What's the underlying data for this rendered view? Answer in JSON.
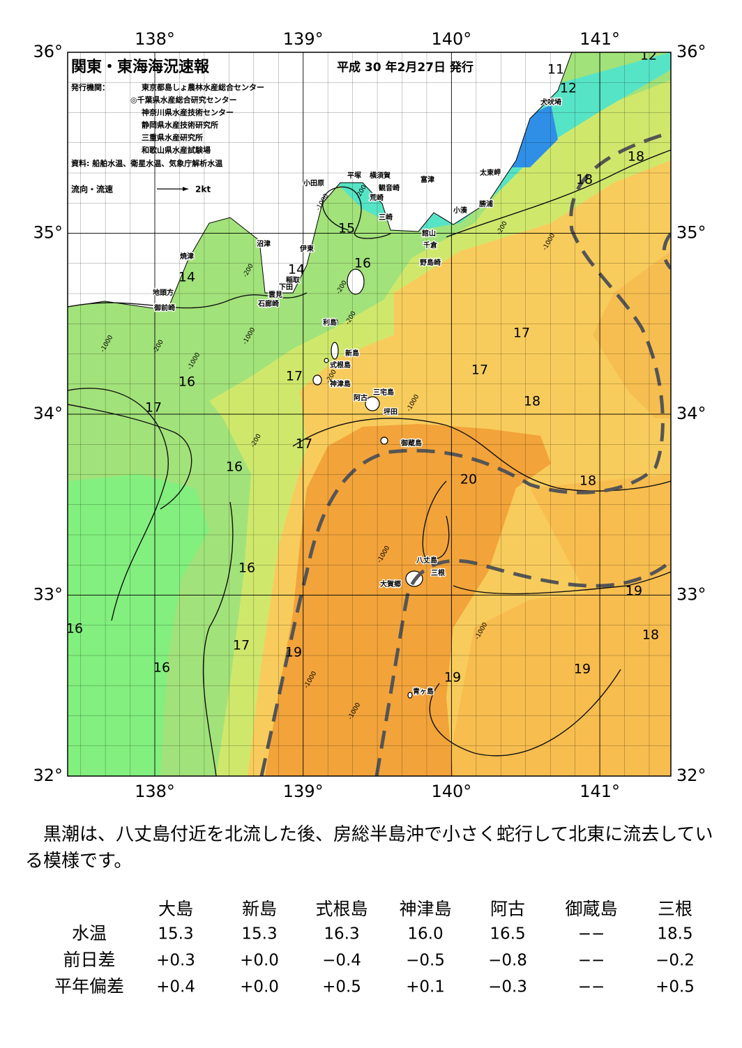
{
  "header": {
    "title": "関東・東海海況速報",
    "date": "平成 30 年2月27日 発行",
    "issuer_label": "発行機関：",
    "issuers": [
      "東京都島しょ農林水産総合センター",
      "◎千葉県水産総合研究センター",
      "神奈川県水産技術センター",
      "静岡県水産技術研究所",
      "三重県水産研究所",
      "和歌山県水産試験場"
    ],
    "source": "資料: 船舶水温、衛星水温、気象庁解析水温",
    "legend_label": "流向・流速",
    "legend_unit": "2kt"
  },
  "axes": {
    "top": [
      "138°",
      "139°",
      "140°",
      "141°"
    ],
    "bottom": [
      "138°",
      "139°",
      "140°",
      "141°"
    ],
    "left": [
      "36°",
      "35°",
      "34°",
      "33°",
      "32°"
    ],
    "right": [
      "36°",
      "35°",
      "34°",
      "33°",
      "32°"
    ]
  },
  "places": [
    "小田原",
    "平塚",
    "横須賀",
    "観音崎",
    "荒崎",
    "三崎",
    "富津",
    "太東岬",
    "勝浦",
    "小湊",
    "館山",
    "千倉",
    "野島崎",
    "犬吠埼",
    "沼津",
    "伊東",
    "焼津",
    "稲取",
    "下田",
    "雲見",
    "石廊崎",
    "地頭方",
    "御前崎",
    "利島",
    "新島",
    "式根島",
    "神津島",
    "三宅島",
    "阿古",
    "坪田",
    "御蔵島",
    "八丈島",
    "三根",
    "大賀郷",
    "青ヶ島"
  ],
  "isotherm_labels": [
    "12",
    "11",
    "12",
    "18",
    "18",
    "15",
    "16",
    "14",
    "14",
    "16",
    "17",
    "17",
    "17",
    "18",
    "17",
    "17",
    "16",
    "20",
    "18",
    "16",
    "19",
    "16",
    "18",
    "17",
    "19",
    "16",
    "19",
    "19"
  ],
  "depth_labels": [
    "-200",
    "-1000",
    "-200",
    "-1000",
    "-200",
    "-200",
    "-200",
    "-1000",
    "-200",
    "-1000",
    "-1000",
    "-200",
    "-1000",
    "-200",
    "-1000",
    "-1000",
    "-1000",
    "-1000"
  ],
  "summary": "　黒潮は、八丈島付近を北流した後、房総半島沖で小さく蛇行して北東に流去している模様です。",
  "table": {
    "columns": [
      "大島",
      "新島",
      "式根島",
      "神津島",
      "阿古",
      "御蔵島",
      "三根"
    ],
    "rows": [
      {
        "label": "水温",
        "cells": [
          "15.3",
          "15.3",
          "16.3",
          "16.0",
          "16.5",
          "−−",
          "18.5"
        ]
      },
      {
        "label": "前日差",
        "cells": [
          "+0.3",
          "+0.0",
          "−0.4",
          "−0.5",
          "−0.8",
          "−−",
          "−0.2"
        ]
      },
      {
        "label": "平年偏差",
        "cells": [
          "+0.4",
          "+0.0",
          "+0.5",
          "+0.1",
          "−0.3",
          "−−",
          "+0.5"
        ]
      }
    ]
  }
}
